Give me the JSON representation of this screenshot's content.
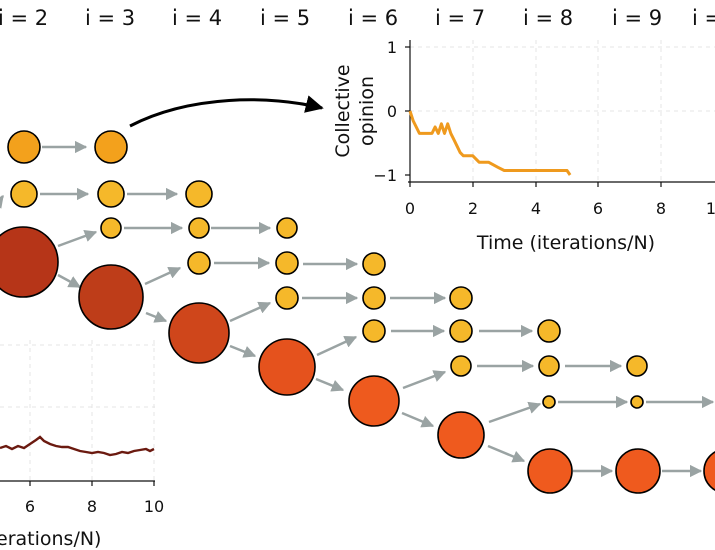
{
  "headers": [
    "i = 2",
    "i = 3",
    "i = 4",
    "i = 5",
    "i = 6",
    "i = 7",
    "i = 8",
    "i = 9",
    "i ="
  ],
  "inset_top": {
    "ylabel_line1": "Collective",
    "ylabel_line2": "opinion",
    "xlabel": "Time (iterations/N)",
    "yticks": [
      "1",
      "0",
      "−1"
    ],
    "xticks": [
      "0",
      "2",
      "4",
      "6",
      "8",
      "1"
    ]
  },
  "inset_bottom": {
    "xticks": [
      "6",
      "8",
      "10"
    ],
    "xlabel": "erations/N)"
  },
  "colors": {
    "small_node": "#f5b82a",
    "mid_node": "#f3a11c",
    "dark_node": "#b63518",
    "orange_node": "#ef5a1e",
    "line_series": "#ef9a1e",
    "bottom_series": "#6b1a10",
    "arrow": "#9aa3a3"
  },
  "chart_data": [
    {
      "type": "line",
      "series": [
        {
          "x": [
            0,
            0.1,
            0.3,
            0.5,
            0.7,
            0.8,
            0.9,
            1.0,
            1.1,
            1.2,
            1.3,
            1.4,
            1.5,
            1.6,
            1.7,
            2.0,
            2.2,
            2.5,
            2.8,
            3.0,
            3.5,
            4.0,
            4.5,
            5.0,
            5.1
          ],
          "y": [
            0.0,
            -0.15,
            -0.35,
            -0.35,
            -0.35,
            -0.25,
            -0.35,
            -0.2,
            -0.35,
            -0.2,
            -0.35,
            -0.45,
            -0.55,
            -0.65,
            -0.7,
            -0.7,
            -0.8,
            -0.8,
            -0.88,
            -0.93,
            -0.93,
            -0.93,
            -0.93,
            -0.93,
            -1.0
          ]
        }
      ],
      "xlabel": "Time (iterations/N)",
      "ylabel": "Collective opinion",
      "xlim": [
        0,
        10
      ],
      "ylim": [
        -1,
        1
      ],
      "grid": true
    }
  ]
}
